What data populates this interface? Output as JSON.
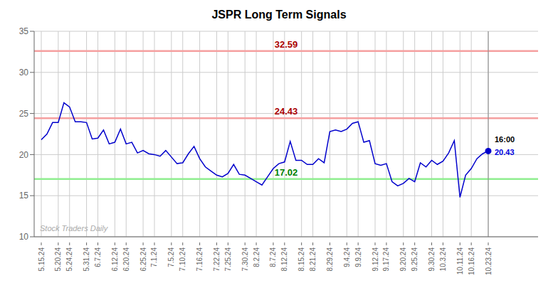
{
  "chart_data": {
    "type": "line",
    "title": "JSPR Long Term Signals",
    "categories": [
      "5.15.24",
      null,
      null,
      "5.20.24",
      null,
      "5.24.24",
      null,
      null,
      "5.31.24",
      null,
      "6.7.24",
      null,
      null,
      "6.12.24",
      null,
      "6.20.24",
      null,
      null,
      "6.25.24",
      null,
      "7.1.24",
      null,
      null,
      "7.5.24",
      null,
      "7.10.24",
      null,
      null,
      "7.16.24",
      null,
      null,
      "7.22.24",
      null,
      "7.25.24",
      null,
      null,
      "7.30.24",
      null,
      "8.2.24",
      null,
      null,
      "8.7.24",
      null,
      "8.12.24",
      null,
      null,
      "8.15.24",
      null,
      "8.21.24",
      null,
      null,
      "8.29.24",
      null,
      null,
      "9.4.24",
      null,
      "9.9.24",
      null,
      null,
      "9.12.24",
      null,
      "9.17.24",
      null,
      null,
      "9.20.24",
      null,
      "9.25.24",
      null,
      null,
      "9.30.24",
      null,
      "10.3.24",
      null,
      null,
      "10.11.24",
      null,
      "10.16.24",
      null,
      null,
      "10.23.24"
    ],
    "values": [
      21.8,
      22.5,
      23.9,
      23.9,
      26.3,
      25.8,
      24.0,
      24.0,
      23.9,
      21.9,
      22.0,
      23.0,
      21.3,
      21.5,
      23.1,
      21.3,
      21.5,
      20.2,
      20.5,
      20.1,
      20.0,
      19.8,
      20.5,
      19.7,
      18.9,
      19.0,
      20.1,
      21.0,
      19.5,
      18.5,
      18.0,
      17.5,
      17.3,
      17.7,
      18.8,
      17.6,
      17.5,
      17.1,
      16.7,
      16.3,
      17.3,
      18.3,
      18.9,
      19.1,
      21.6,
      19.3,
      19.3,
      18.8,
      18.8,
      19.5,
      19.0,
      22.8,
      23.0,
      22.8,
      23.1,
      23.8,
      24.0,
      21.5,
      21.7,
      18.9,
      18.7,
      18.9,
      16.7,
      16.2,
      16.5,
      17.1,
      16.7,
      19.0,
      18.5,
      19.3,
      18.8,
      19.2,
      20.2,
      21.7,
      14.8,
      17.5,
      18.3,
      19.5,
      20.1,
      20.43
    ],
    "color": "#0000cc",
    "ylim": [
      10,
      35
    ],
    "yticks": [
      10,
      15,
      20,
      25,
      30,
      35
    ],
    "grid": true,
    "reference_lines": [
      {
        "value": 32.59,
        "label": "32.59",
        "color": "#f5a0a0",
        "label_color": "#aa0000"
      },
      {
        "value": 24.43,
        "label": "24.43",
        "color": "#f5a0a0",
        "label_color": "#aa0000"
      },
      {
        "value": 17.02,
        "label": "17.02",
        "color": "#90ee90",
        "label_color": "#008000"
      }
    ],
    "annotations": [
      {
        "text": "16:00"
      },
      {
        "text": "20.43",
        "color": "#0000dd"
      },
      {
        "text": "Stock Traders Daily"
      }
    ]
  }
}
